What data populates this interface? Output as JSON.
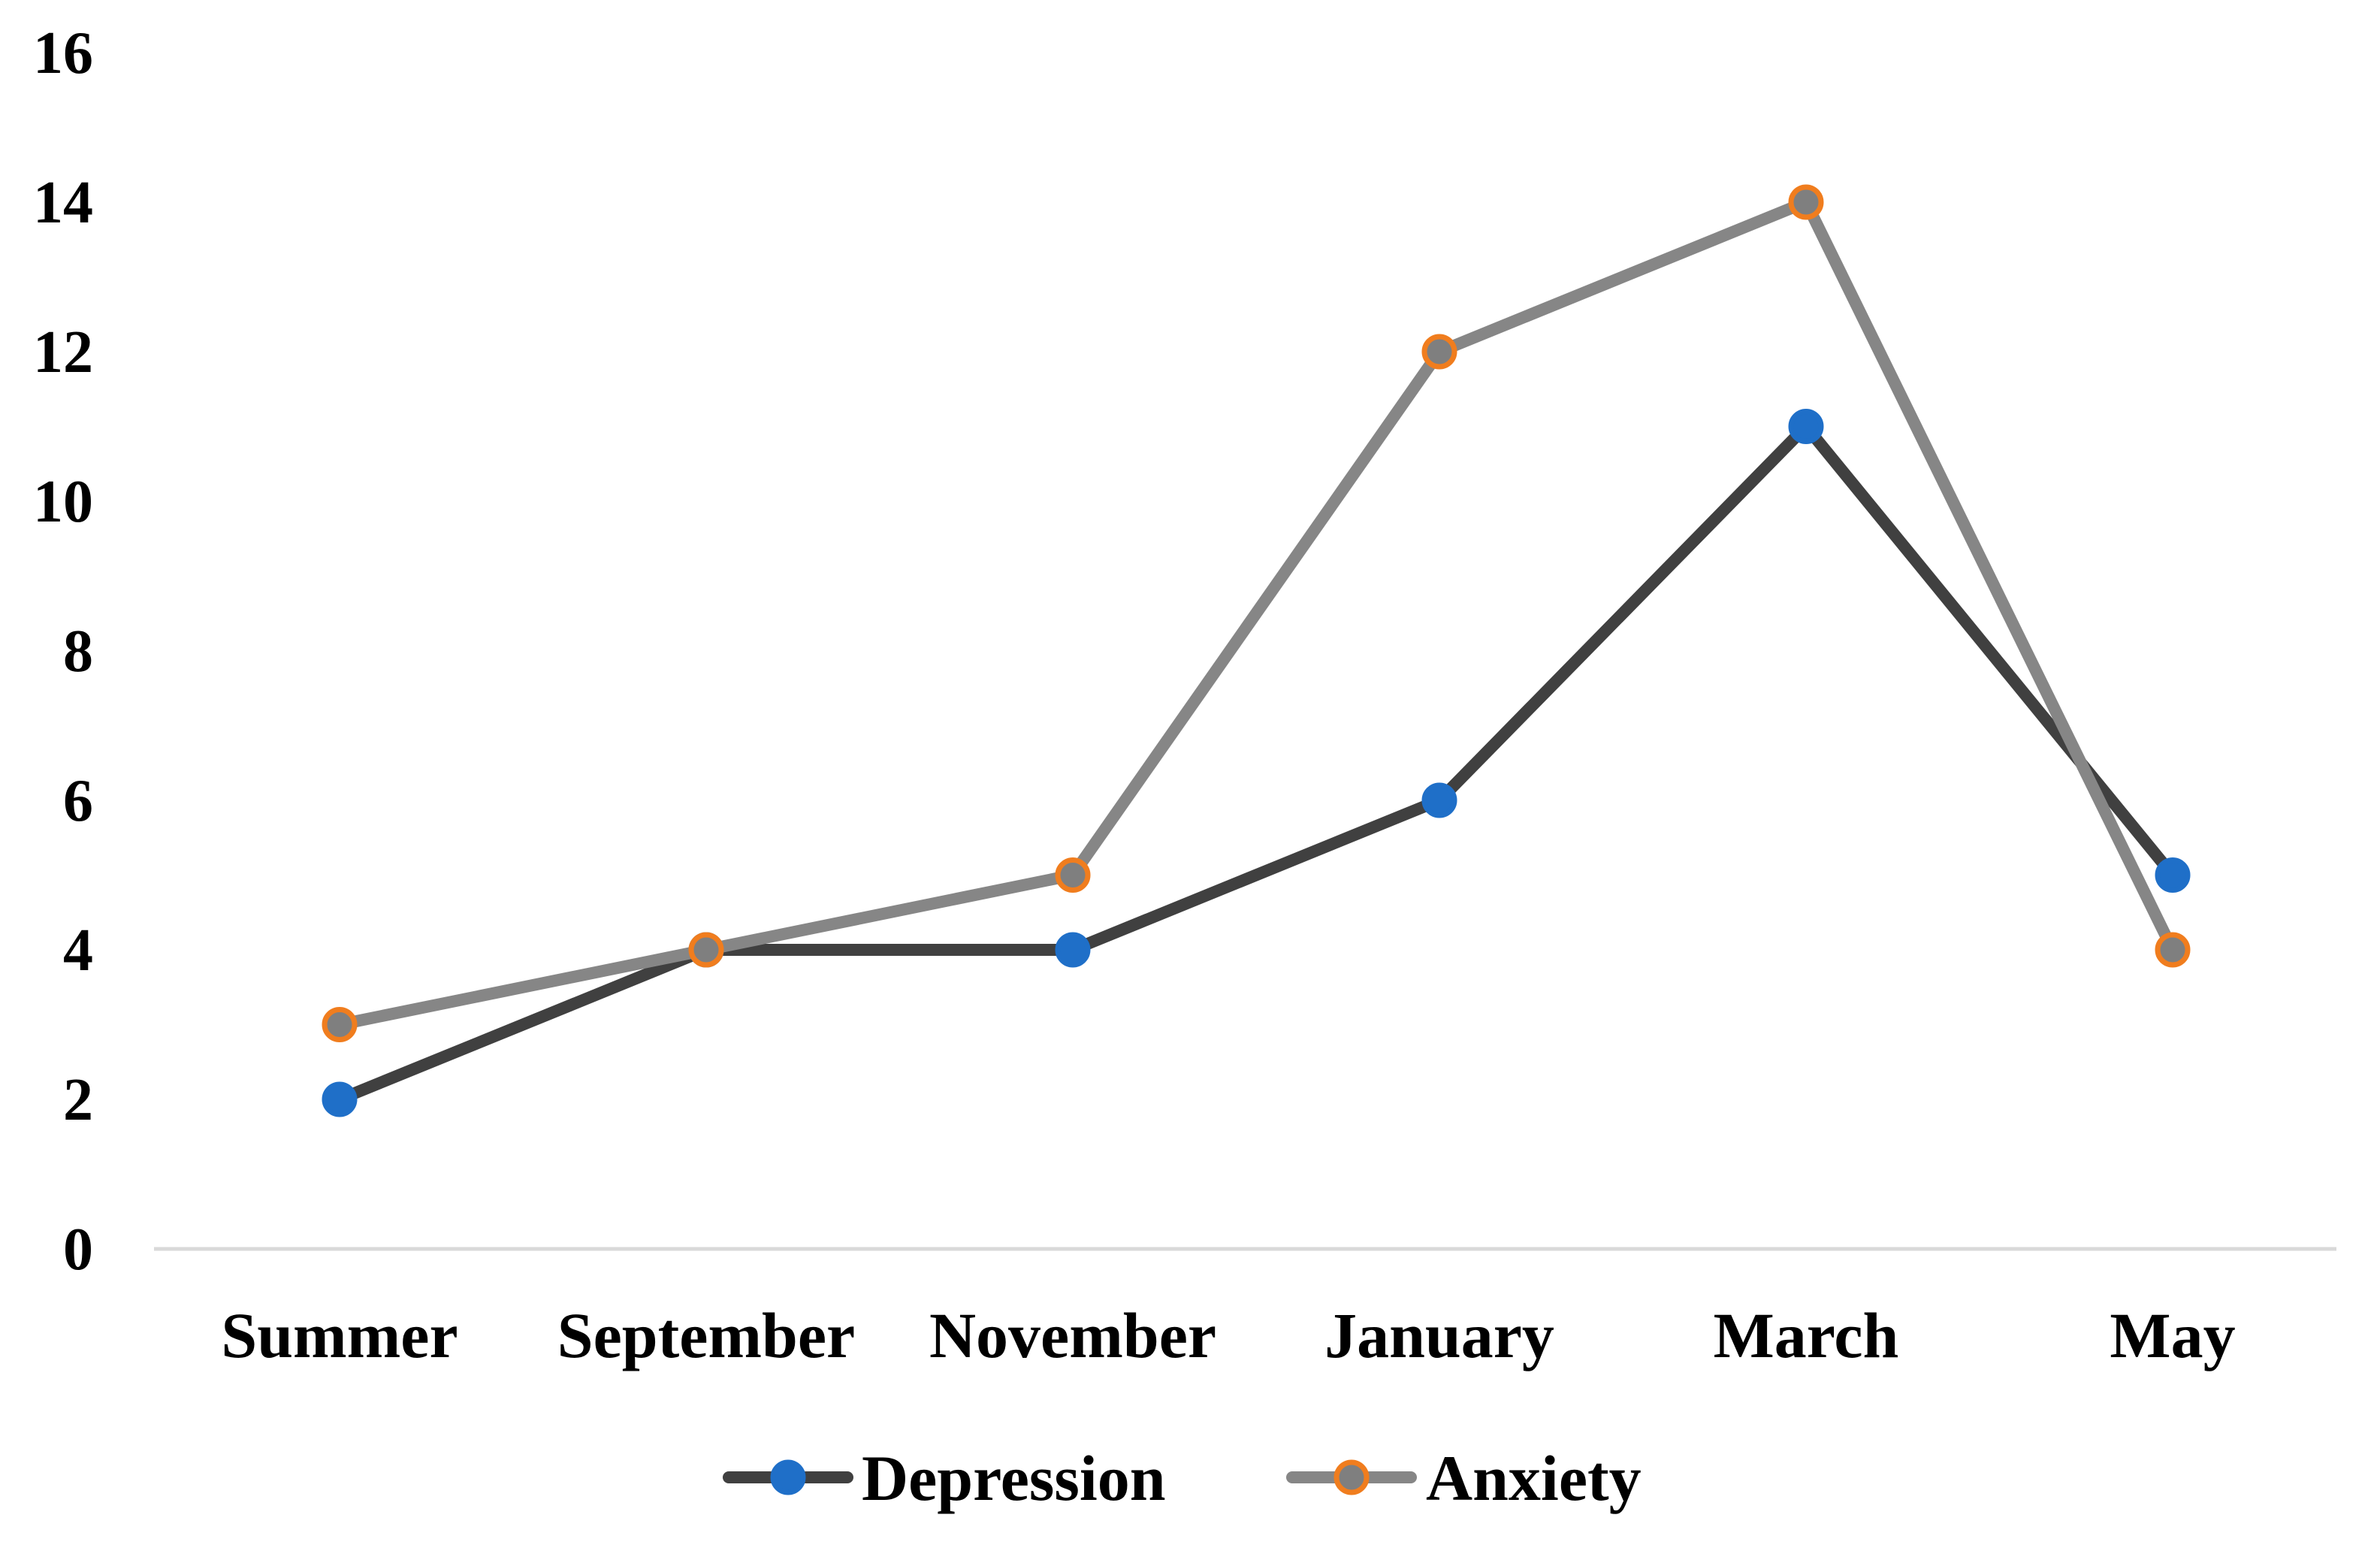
{
  "chart_data": {
    "type": "line",
    "categories": [
      "Summer",
      "September",
      "November",
      "January",
      "March",
      "May"
    ],
    "series": [
      {
        "name": "Depression",
        "values": [
          2,
          4,
          4,
          6,
          11,
          5
        ],
        "line_color": "#404040",
        "marker_fill": "#1f6fc8",
        "marker_stroke": "#1f6fc8"
      },
      {
        "name": "Anxiety",
        "values": [
          3,
          4,
          5,
          12,
          14,
          4
        ],
        "line_color": "#868686",
        "marker_fill": "#7f7f7f",
        "marker_stroke": "#f07d1e"
      }
    ],
    "yticks": [
      0,
      2,
      4,
      6,
      8,
      10,
      12,
      14,
      16
    ],
    "ylim": [
      0,
      16
    ],
    "title": "",
    "xlabel": "",
    "ylabel": "",
    "grid": false,
    "legend_position": "bottom"
  }
}
